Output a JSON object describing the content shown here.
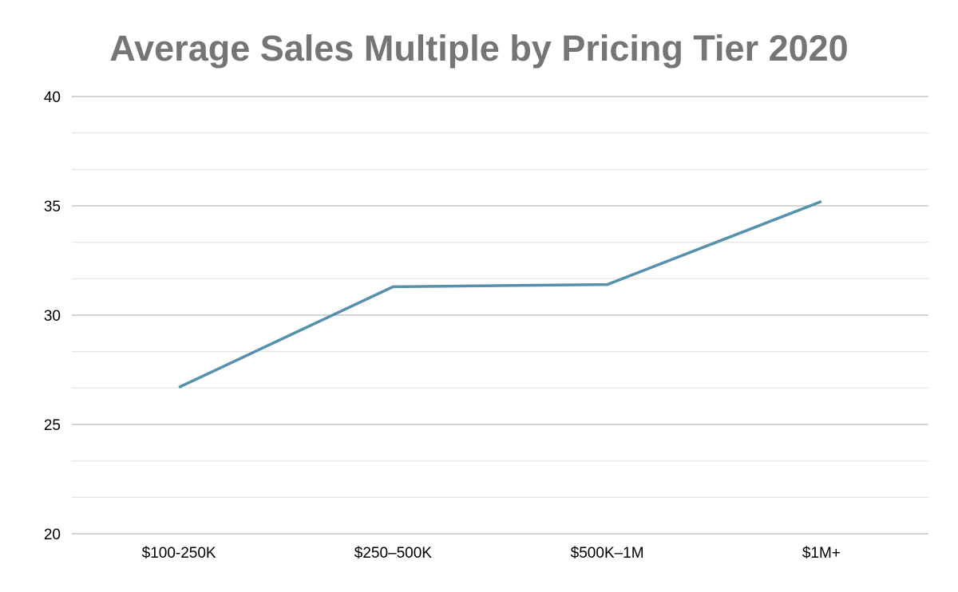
{
  "chart_data": {
    "type": "line",
    "title": "Average Sales Multiple by Pricing Tier 2020",
    "xlabel": "",
    "ylabel": "",
    "categories": [
      "$100-250K",
      "$250–500K",
      "$500K–1M",
      "$1M+"
    ],
    "series": [
      {
        "values": [
          26.7,
          31.3,
          31.4,
          35.2
        ],
        "color": "#5590ad"
      }
    ],
    "ylim": [
      20,
      40
    ],
    "yticks": [
      "20",
      "25",
      "30",
      "35",
      "40"
    ],
    "grid": true,
    "legend": "none"
  }
}
